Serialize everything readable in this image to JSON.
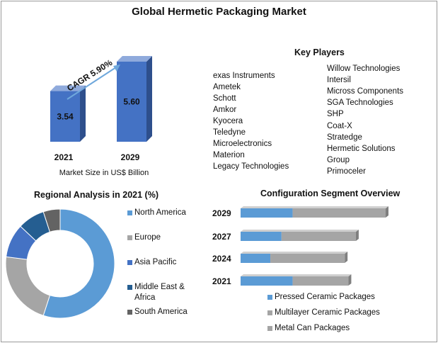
{
  "title": "Global Hermetic Packaging Market",
  "market_size": {
    "chart_data": {
      "type": "bar",
      "categories": [
        "2021",
        "2029"
      ],
      "values": [
        3.54,
        5.6
      ],
      "value_labels": [
        "3.54",
        "5.60"
      ],
      "xlabel": "Market Size in US$ Billion",
      "annotation": "CAGR 5.90%",
      "colors": {
        "front": "#4472c4",
        "side": "#2e4f8c",
        "top": "#8faadc"
      }
    }
  },
  "key_players": {
    "title": "Key Players",
    "left": [
      "exas Instruments",
      "Ametek",
      "Schott",
      "Amkor",
      "Kyocera",
      "Teledyne",
      "Microelectronics",
      "Materion",
      "Legacy Technologies"
    ],
    "right": [
      "Willow Technologies",
      "Intersil",
      "Micross Components",
      "SGA Technologies",
      "SHP",
      "Coat-X",
      "Stratedge",
      "Hermetic Solutions",
      "Group",
      "Primoceler"
    ]
  },
  "regional": {
    "title": "Regional Analysis in 2021 (%)",
    "chart_data": {
      "type": "pie",
      "categories": [
        "North America",
        "Europe",
        "Asia Pacific",
        "Middle East & Africa",
        "South America"
      ],
      "values": [
        55,
        22,
        10,
        8,
        5
      ],
      "colors": [
        "#5b9bd5",
        "#a5a5a5",
        "#4472c4",
        "#255e91",
        "#636363"
      ]
    },
    "legend_labels": [
      "North America",
      "Europe",
      "Asia Pacific",
      "Middle East &",
      "Africa",
      "South America"
    ]
  },
  "configuration": {
    "title": "Configuration Segment Overview",
    "chart_data": {
      "type": "bar",
      "orientation": "horizontal",
      "stacked": true,
      "categories": [
        "2029",
        "2027",
        "2024",
        "2021"
      ],
      "series": [
        {
          "name": "Pressed Ceramic Packages",
          "values": [
            1.4,
            1.1,
            0.8,
            1.4
          ],
          "color": "#5b9bd5"
        },
        {
          "name": "Multilayer Ceramic Packages",
          "values": [
            2.5,
            2.0,
            2.0,
            1.5
          ],
          "color": "#a5a5a5"
        },
        {
          "name": "Metal Can Packages",
          "values": [
            0,
            0,
            0,
            0
          ],
          "color": "#a5a5a5"
        }
      ]
    }
  }
}
